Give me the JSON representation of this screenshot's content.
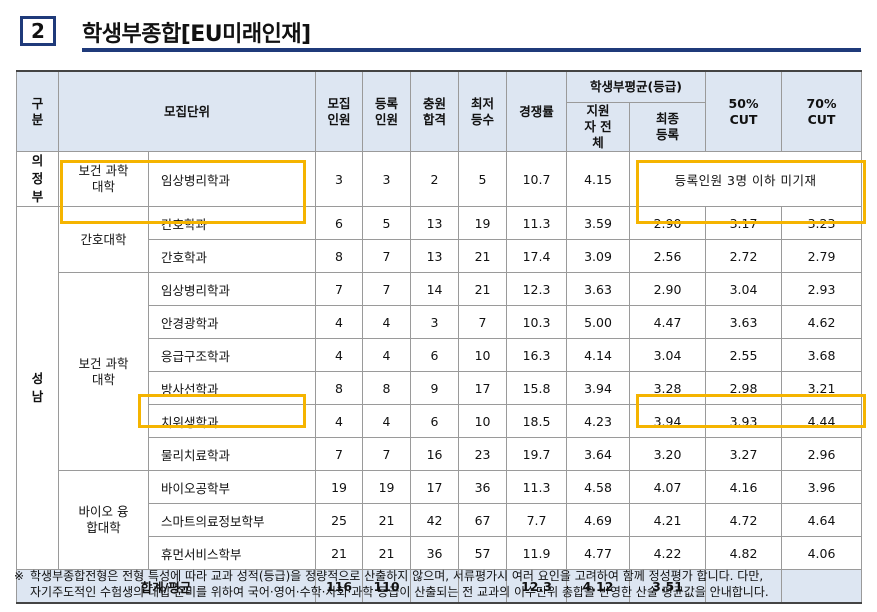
{
  "header": {
    "number": "2",
    "title": "학생부종합[EU미래인재]"
  },
  "table": {
    "headers": {
      "gubun": "구 분",
      "unit": "모집단위",
      "recruit": "모집 인원",
      "enroll": "등록 인원",
      "extra": "충원 합격",
      "min": "최저 등수",
      "ratio": "경쟁률",
      "avg_group": "학생부평균(등급)",
      "applicants": "지원자 전체",
      "final": "최종 등록",
      "cut50": "50% CUT",
      "cut70": "70% CUT"
    },
    "groups": {
      "uijeongbu": "의 정 부",
      "seongnam": "성 남"
    },
    "colleges": {
      "health1": "보건 과학대학",
      "nursing": "간호대학",
      "health2": "보건 과학대학",
      "bio": "바이오 융합대학"
    },
    "rows": [
      {
        "dept": "임상병리학과",
        "recruit": "3",
        "enroll": "3",
        "extra": "2",
        "min": "5",
        "ratio": "10.7",
        "applicants": "4.15",
        "final": "",
        "cut50": "",
        "cut70": "",
        "note": "등록인원 3명 이하 미기재"
      },
      {
        "dept": "간호학과",
        "recruit": "6",
        "enroll": "5",
        "extra": "13",
        "min": "19",
        "ratio": "11.3",
        "applicants": "3.59",
        "final": "2.90",
        "cut50": "3.17",
        "cut70": "3.23"
      },
      {
        "dept": "간호학과",
        "recruit": "8",
        "enroll": "7",
        "extra": "13",
        "min": "21",
        "ratio": "17.4",
        "applicants": "3.09",
        "final": "2.56",
        "cut50": "2.72",
        "cut70": "2.79"
      },
      {
        "dept": "임상병리학과",
        "recruit": "7",
        "enroll": "7",
        "extra": "14",
        "min": "21",
        "ratio": "12.3",
        "applicants": "3.63",
        "final": "2.90",
        "cut50": "3.04",
        "cut70": "2.93"
      },
      {
        "dept": "안경광학과",
        "recruit": "4",
        "enroll": "4",
        "extra": "3",
        "min": "7",
        "ratio": "10.3",
        "applicants": "5.00",
        "final": "4.47",
        "cut50": "3.63",
        "cut70": "4.62"
      },
      {
        "dept": "응급구조학과",
        "recruit": "4",
        "enroll": "4",
        "extra": "6",
        "min": "10",
        "ratio": "16.3",
        "applicants": "4.14",
        "final": "3.04",
        "cut50": "2.55",
        "cut70": "3.68"
      },
      {
        "dept": "방사선학과",
        "recruit": "8",
        "enroll": "8",
        "extra": "9",
        "min": "17",
        "ratio": "15.8",
        "applicants": "3.94",
        "final": "3.28",
        "cut50": "2.98",
        "cut70": "3.21"
      },
      {
        "dept": "치위생학과",
        "recruit": "4",
        "enroll": "4",
        "extra": "6",
        "min": "10",
        "ratio": "18.5",
        "applicants": "4.23",
        "final": "3.94",
        "cut50": "3.93",
        "cut70": "4.44"
      },
      {
        "dept": "물리치료학과",
        "recruit": "7",
        "enroll": "7",
        "extra": "16",
        "min": "23",
        "ratio": "19.7",
        "applicants": "3.64",
        "final": "3.20",
        "cut50": "3.27",
        "cut70": "2.96"
      },
      {
        "dept": "바이오공학부",
        "recruit": "19",
        "enroll": "19",
        "extra": "17",
        "min": "36",
        "ratio": "11.3",
        "applicants": "4.58",
        "final": "4.07",
        "cut50": "4.16",
        "cut70": "3.96"
      },
      {
        "dept": "스마트의료정보학부",
        "recruit": "25",
        "enroll": "21",
        "extra": "42",
        "min": "67",
        "ratio": "7.7",
        "applicants": "4.69",
        "final": "4.21",
        "cut50": "4.72",
        "cut70": "4.64"
      },
      {
        "dept": "휴먼서비스학부",
        "recruit": "21",
        "enroll": "21",
        "extra": "36",
        "min": "57",
        "ratio": "11.9",
        "applicants": "4.77",
        "final": "4.22",
        "cut50": "4.82",
        "cut70": "4.06"
      }
    ],
    "total": {
      "label": "합계/평균",
      "recruit": "116",
      "enroll": "110",
      "extra": "",
      "min": "",
      "ratio": "12.3",
      "applicants": "4.12",
      "final": "3.51",
      "cut50": "",
      "cut70": ""
    }
  },
  "footnote": {
    "mark": "※",
    "line1": "학생부종합전형은 전형 특성에 따라 교과 성적(등급)을 정량적으로 산출하지 않으며, 서류평가시 여러 요인을 고려하여 함께 정성평가 합니다. 다만,",
    "line2": "자기주도적인 수험생의 대입 준비를 위하여 국어·영어·수학·사회·과학 등급이 산출되는 전 교과의 이수단위 총합을 반영한 산술 평균값을 안내합니다."
  },
  "highlight_color": "#f5b400",
  "accent_color": "#1f3a7a"
}
